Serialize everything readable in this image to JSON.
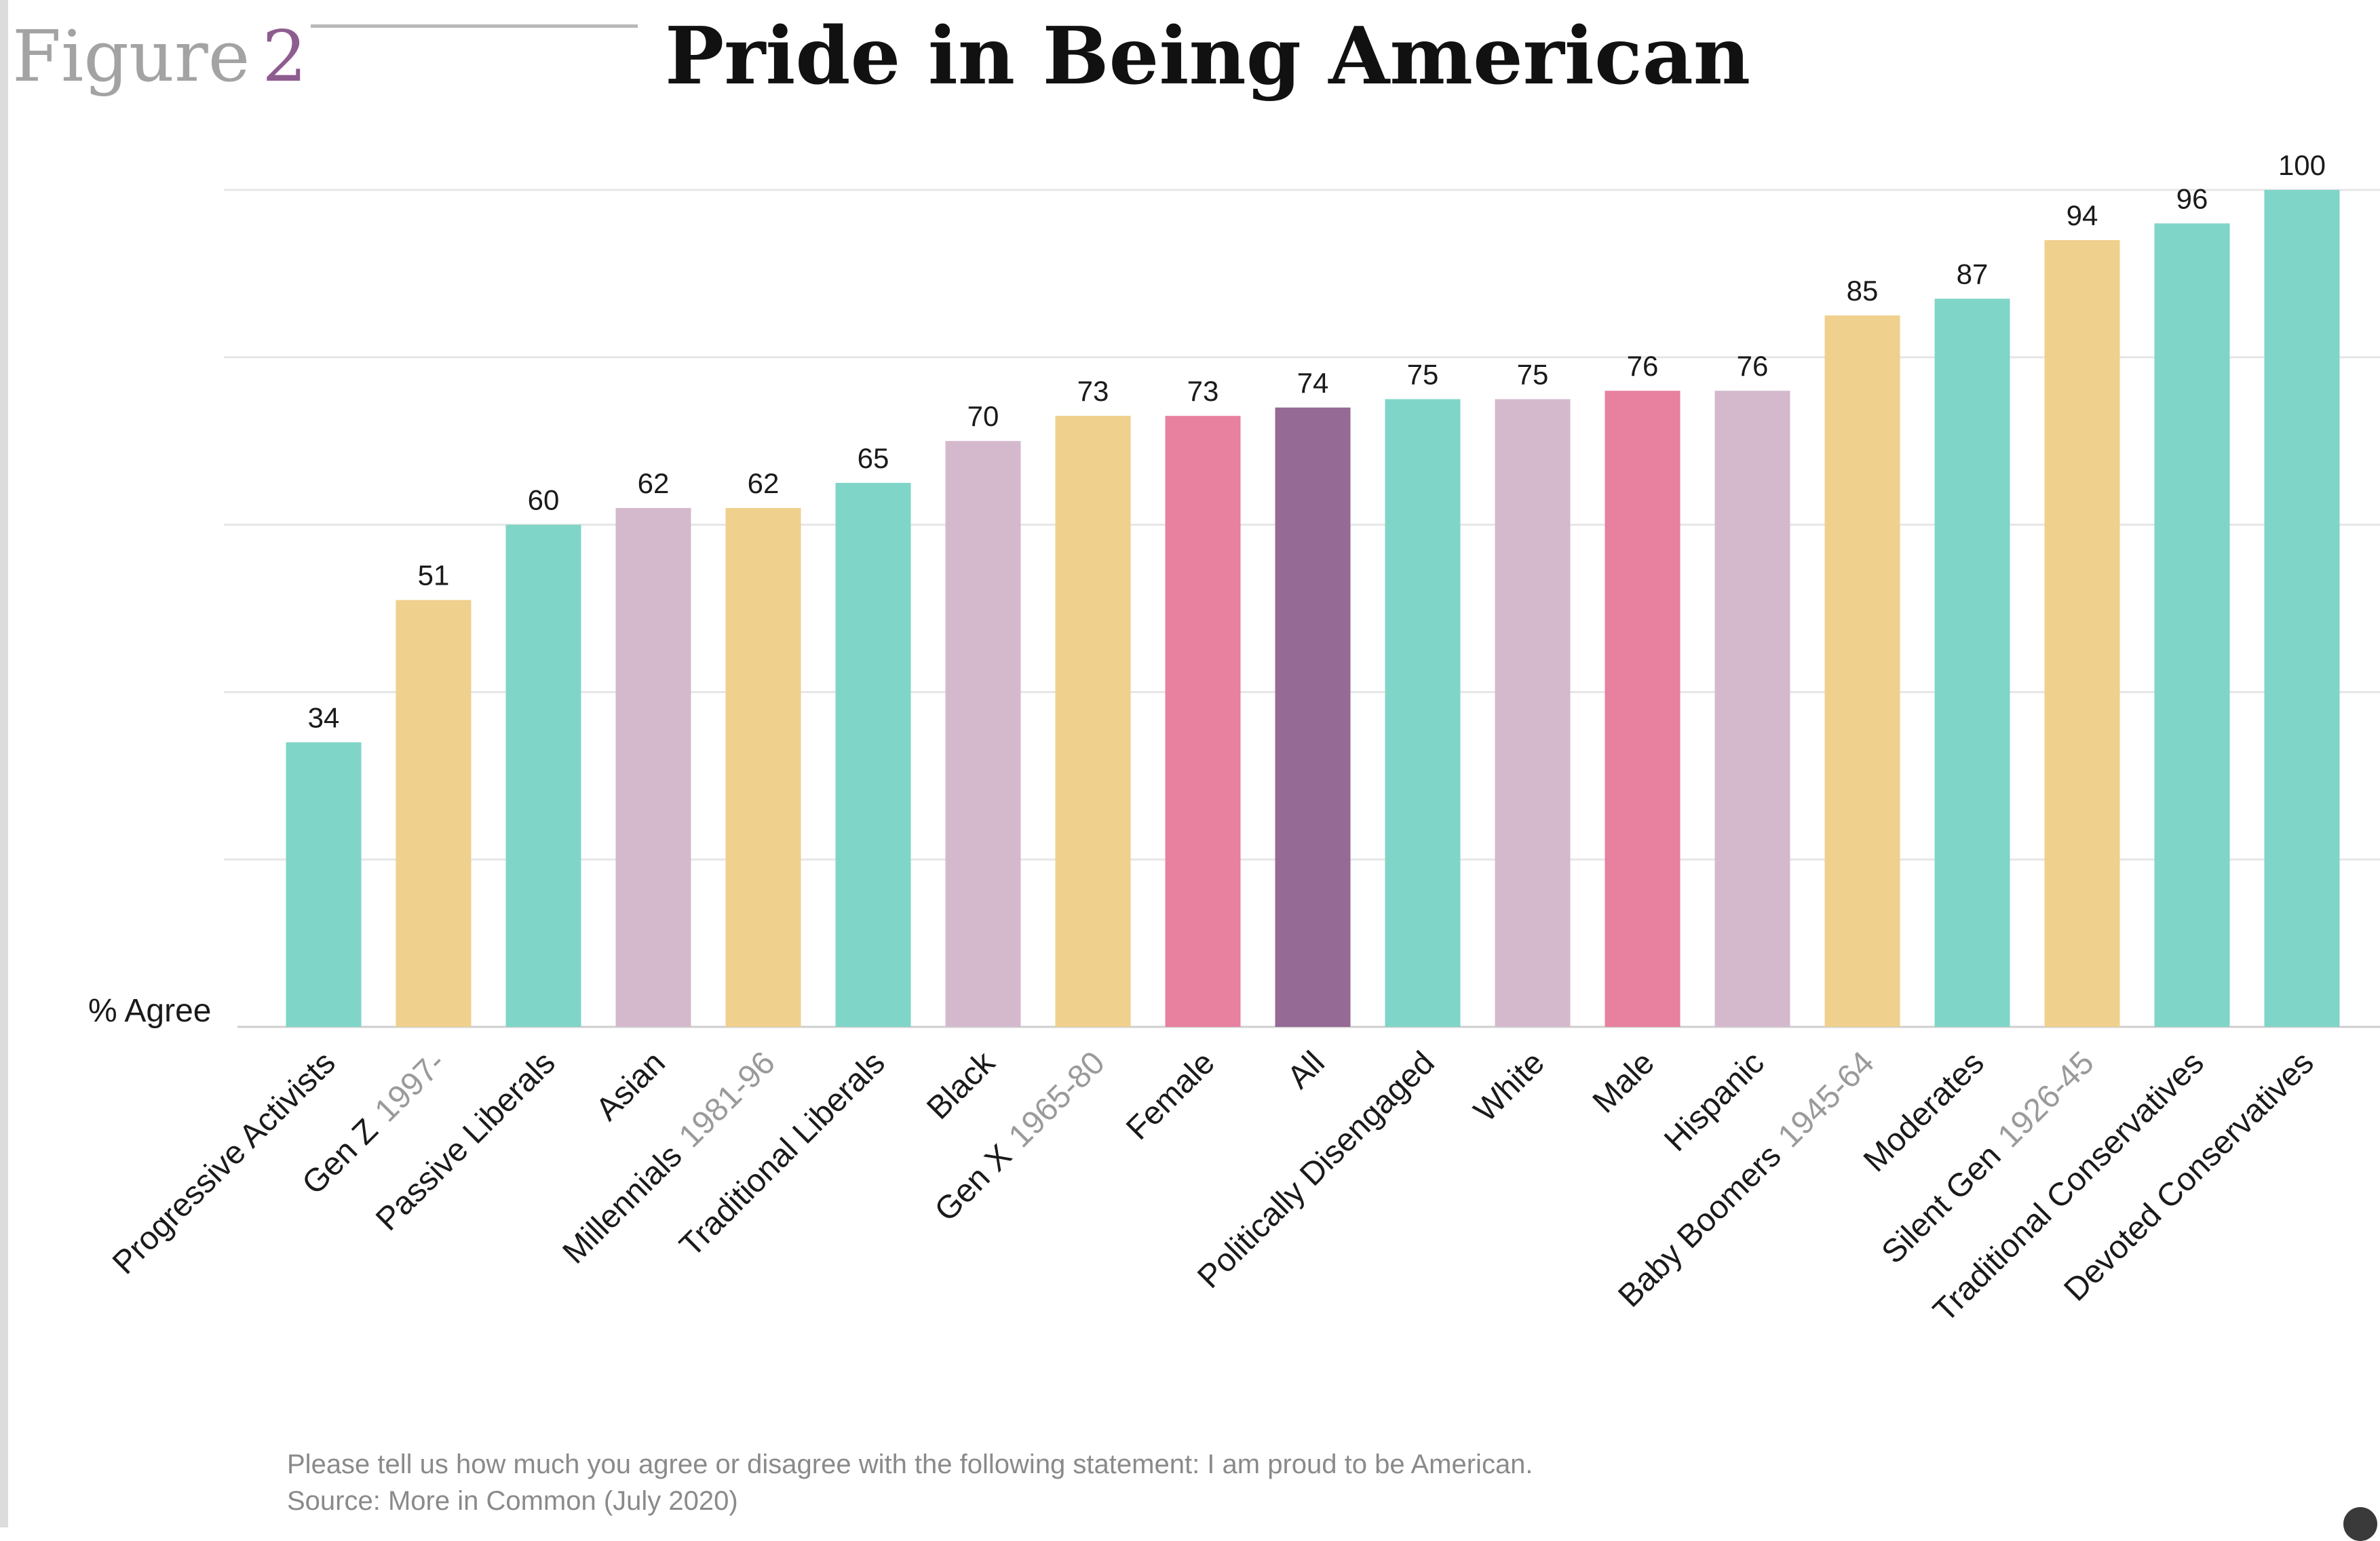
{
  "figure": {
    "word": "Figure",
    "number": "2"
  },
  "title": "Pride in Being American",
  "footnote": {
    "question": "Please tell us how much you agree or disagree with the following statement: I am proud to be American.",
    "source": "Source: More in Common (July 2020)"
  },
  "colors": {
    "teal": "#7fd5c8",
    "gold": "#efd08d",
    "lilac": "#d4b9cd",
    "pink": "#e8809f",
    "purple": "#956a94",
    "grid": "#e6e6e6",
    "baseline": "#cfcfcf",
    "text": "#1a1a1a",
    "muted": "#9a9a9a"
  },
  "chart_data": {
    "type": "bar",
    "title": "Pride in Being American",
    "ylabel": "% Agree",
    "xlabel": "",
    "ylim": [
      0,
      100
    ],
    "grid": true,
    "categories": [
      {
        "name": "Progressive Activists",
        "sub": "",
        "value": 34,
        "color": "teal"
      },
      {
        "name": "Gen Z",
        "sub": "1997-",
        "value": 51,
        "color": "gold"
      },
      {
        "name": "Passive Liberals",
        "sub": "",
        "value": 60,
        "color": "teal"
      },
      {
        "name": "Asian",
        "sub": "",
        "value": 62,
        "color": "lilac"
      },
      {
        "name": "Millennials",
        "sub": "1981-96",
        "value": 62,
        "color": "gold"
      },
      {
        "name": "Traditional Liberals",
        "sub": "",
        "value": 65,
        "color": "teal"
      },
      {
        "name": "Black",
        "sub": "",
        "value": 70,
        "color": "lilac"
      },
      {
        "name": "Gen X",
        "sub": "1965-80",
        "value": 73,
        "color": "gold"
      },
      {
        "name": "Female",
        "sub": "",
        "value": 73,
        "color": "pink"
      },
      {
        "name": "All",
        "sub": "",
        "value": 74,
        "color": "purple"
      },
      {
        "name": "Politically Disengaged",
        "sub": "",
        "value": 75,
        "color": "teal"
      },
      {
        "name": "White",
        "sub": "",
        "value": 75,
        "color": "lilac"
      },
      {
        "name": "Male",
        "sub": "",
        "value": 76,
        "color": "pink"
      },
      {
        "name": "Hispanic",
        "sub": "",
        "value": 76,
        "color": "lilac"
      },
      {
        "name": "Baby Boomers",
        "sub": "1945-64",
        "value": 85,
        "color": "gold"
      },
      {
        "name": "Moderates",
        "sub": "",
        "value": 87,
        "color": "teal"
      },
      {
        "name": "Silent Gen",
        "sub": "1926-45",
        "value": 94,
        "color": "gold"
      },
      {
        "name": "Traditional Conservatives",
        "sub": "",
        "value": 96,
        "color": "teal"
      },
      {
        "name": "Devoted Conservatives",
        "sub": "",
        "value": 100,
        "color": "teal"
      }
    ]
  }
}
